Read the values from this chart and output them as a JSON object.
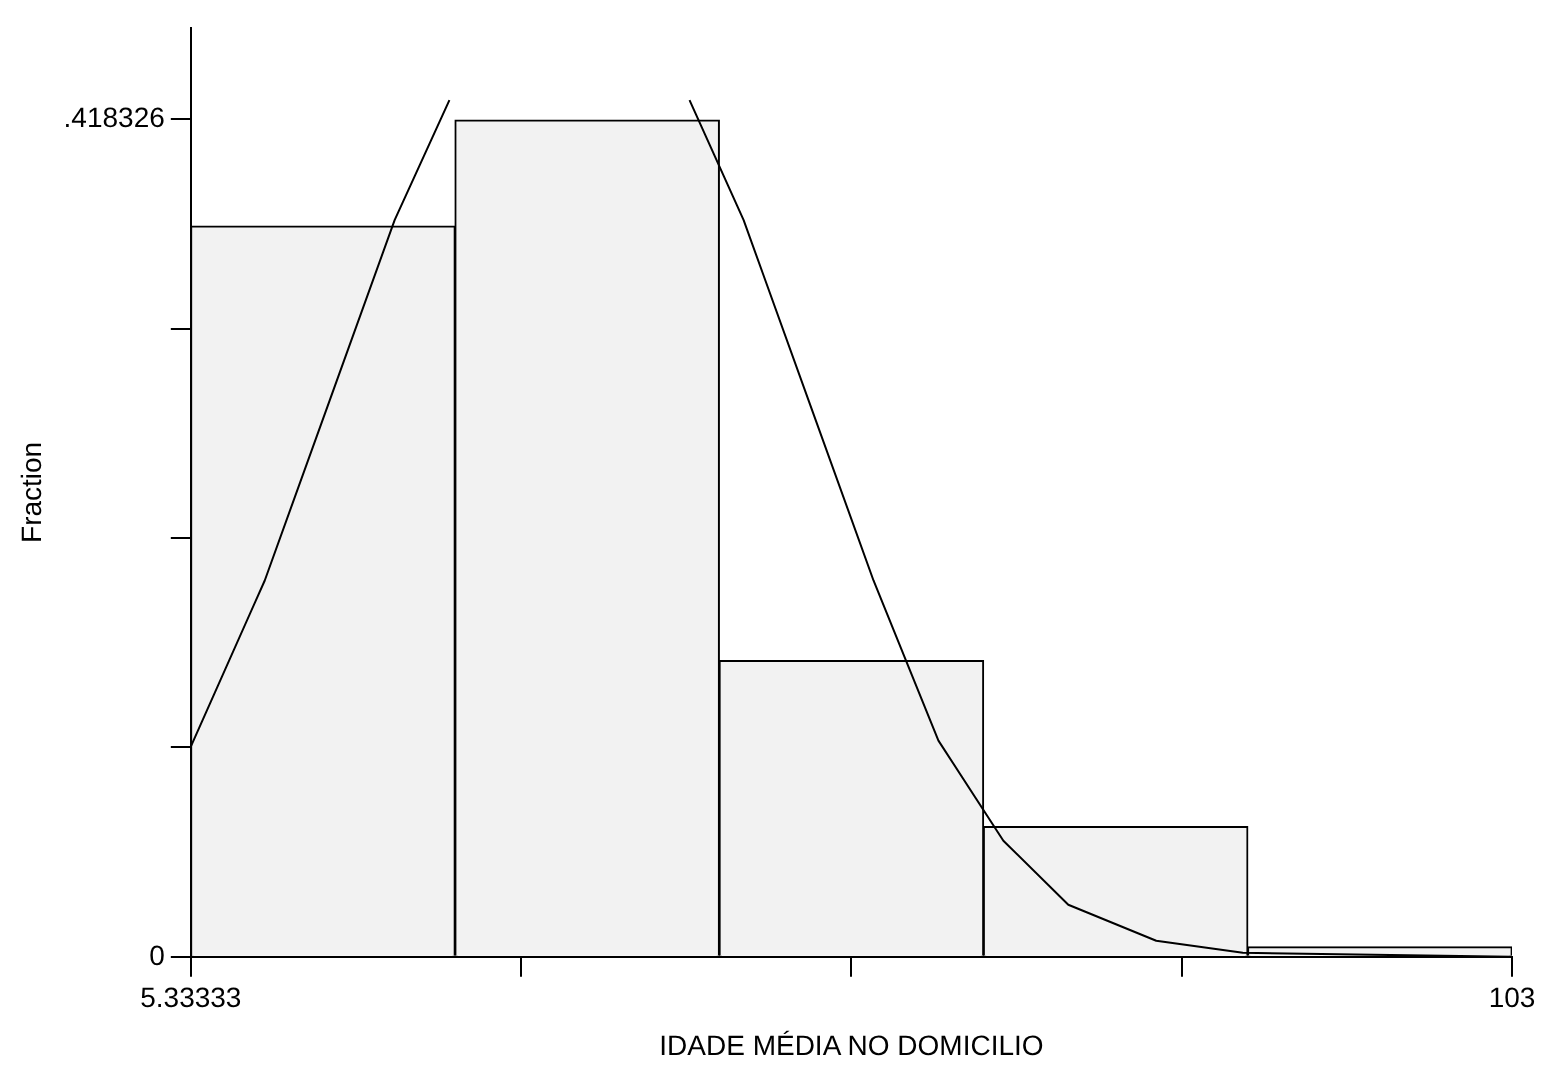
{
  "chart_data": {
    "type": "histogram",
    "xlabel": "IDADE MÉDIA NO DOMICILIO",
    "ylabel": "Fraction",
    "bins": [
      5.33333,
      24.8667,
      44.4,
      63.9333,
      83.4667,
      103
    ],
    "values": [
      0.365,
      0.418,
      0.148,
      0.065,
      0.005
    ],
    "color": "#f2f2f2",
    "series": [
      {
        "type": "line",
        "color": "#000000",
        "x": [
          5.33333,
          10.8,
          15.6,
          20.4,
          24.45,
          28.5,
          38.1,
          42.2,
          46.2,
          51.0,
          55.8,
          60.6,
          65.4,
          70.2,
          76.7,
          83.1,
          103
        ],
        "values": [
          0.105,
          0.188,
          0.278,
          0.368,
          0.428,
          null,
          null,
          0.428,
          0.368,
          0.278,
          0.188,
          0.108,
          0.058,
          0.026,
          0.008,
          0.002,
          0
        ]
      }
    ],
    "xlim": [
      5.33333,
      103
    ],
    "xticks": [
      5.33333,
      {
        "value": 29.75,
        "label": null
      },
      {
        "value": 54.17,
        "label": null
      },
      {
        "value": 78.58,
        "label": null
      },
      103
    ],
    "ylim": [
      0,
      0.464
    ],
    "yticks": [
      0,
      {
        "value": 0.1046,
        "label": null
      },
      {
        "value": 0.2092,
        "label": null
      },
      {
        "value": 0.3137,
        "label": null
      },
      {
        "value": 0.418326,
        "label": ".418326"
      }
    ],
    "grid": false,
    "legend": false
  }
}
